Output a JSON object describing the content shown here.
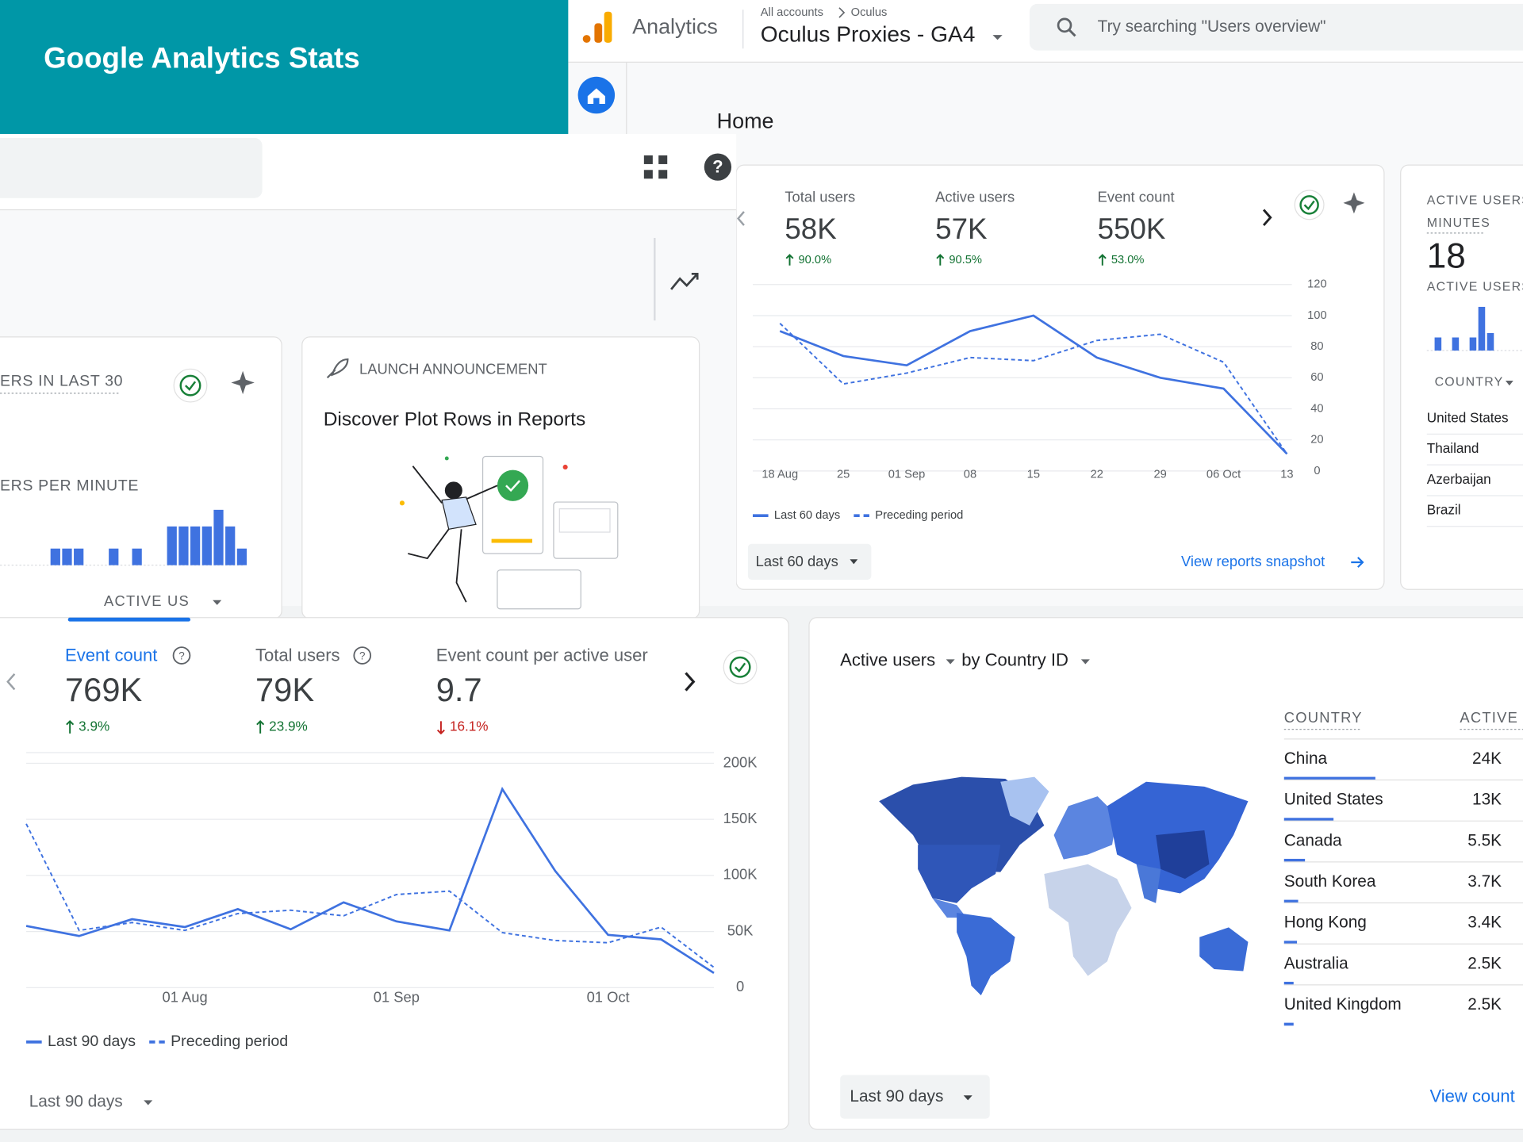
{
  "banner": {
    "title": "Google Analytics Stats"
  },
  "topbar": {
    "product": "Analytics",
    "breadcrumb": [
      "All accounts",
      "Oculus"
    ],
    "property": "Oculus Proxies - GA4",
    "search_placeholder": "Try searching \"Users overview\""
  },
  "page_title": "Home",
  "realtime_card": {
    "labels": [
      "ERS IN LAST 30",
      "ERS PER MINUTE",
      "ACTIVE US"
    ]
  },
  "launch_card": {
    "eyebrow": "LAUNCH ANNOUNCEMENT",
    "title": "Discover Plot Rows in Reports"
  },
  "right_card": {
    "title_lines": [
      "ACTIVE USERS I",
      "MINUTES"
    ],
    "value": "18",
    "subtitle": "ACTIVE USERS I",
    "column": "COUNTRY",
    "countries": [
      "United States",
      "Thailand",
      "Azerbaijan",
      "Brazil"
    ]
  },
  "top_card": {
    "date_range": "Last 60 days",
    "link": "View reports snapshot"
  },
  "bottom_card": {
    "date_range": "Last 90 days"
  },
  "map_card": {
    "title_metric": "Active users",
    "title_dimension": "by Country ID",
    "date_range": "Last 90 days",
    "link": "View count"
  },
  "chart_data": [
    {
      "type": "line",
      "metrics": [
        {
          "name": "Total users",
          "value": "58K",
          "change": "90.0%",
          "trend": "up"
        },
        {
          "name": "Active users",
          "value": "57K",
          "change": "90.5%",
          "trend": "up"
        },
        {
          "name": "Event count",
          "value": "550K",
          "change": "53.0%",
          "trend": "up"
        }
      ],
      "categories": [
        "18 Aug",
        "25",
        "01 Sep",
        "08",
        "15",
        "22",
        "29",
        "06 Oct",
        "13"
      ],
      "series": [
        {
          "name": "Last 60 days",
          "color": "#3f72e0",
          "style": "solid",
          "values": [
            90,
            74,
            68,
            90,
            100,
            73,
            60,
            53,
            11
          ]
        },
        {
          "name": "Preceding period",
          "color": "#3f72e0",
          "style": "dashed",
          "values": [
            95,
            56,
            63,
            73,
            71,
            84,
            88,
            70,
            11
          ]
        }
      ],
      "ylim": [
        0,
        120
      ],
      "yticks": [
        0,
        20,
        40,
        60,
        80,
        100,
        120
      ],
      "grid": true
    },
    {
      "type": "line",
      "selected_metric": 0,
      "metrics": [
        {
          "name": "Event count",
          "value": "769K",
          "change": "3.9%",
          "trend": "up"
        },
        {
          "name": "Total users",
          "value": "79K",
          "change": "23.9%",
          "trend": "up"
        },
        {
          "name": "Event count per active user",
          "value": "9.7",
          "change": "16.1%",
          "trend": "down"
        }
      ],
      "categories": [
        null,
        null,
        null,
        "01 Aug",
        null,
        null,
        null,
        "01 Sep",
        null,
        null,
        null,
        "01 Oct",
        null,
        null
      ],
      "series": [
        {
          "name": "Last 90 days",
          "color": "#3f72e0",
          "style": "solid",
          "values": [
            55000,
            46000,
            61000,
            54000,
            70000,
            52000,
            76000,
            59000,
            51000,
            177000,
            104000,
            47000,
            43000,
            13000
          ]
        },
        {
          "name": "Preceding period",
          "color": "#3f72e0",
          "style": "dashed",
          "values": [
            146000,
            51000,
            58000,
            51000,
            66000,
            69000,
            64000,
            83000,
            86000,
            49000,
            42000,
            40000,
            54000,
            18000
          ]
        }
      ],
      "ylim": [
        0,
        200000
      ],
      "yticks": [
        0,
        {
          "value": 50000,
          "label": "50K"
        },
        {
          "value": 100000,
          "label": "100K"
        },
        {
          "value": 150000,
          "label": "150K"
        },
        {
          "value": 200000,
          "label": "200K"
        }
      ],
      "grid": true
    },
    {
      "type": "hbar",
      "columns": [
        "COUNTRY",
        "ACTIVE"
      ],
      "categories": [
        "China",
        "United States",
        "Canada",
        "South Korea",
        "Hong Kong",
        "Australia",
        "United Kingdom"
      ],
      "values": [
        24000,
        13000,
        5500,
        3700,
        3400,
        2500,
        2500
      ],
      "value_labels": [
        "24K",
        "13K",
        "5.5K",
        "3.7K",
        "3.4K",
        "2.5K",
        "2.5K"
      ],
      "color": "#3f72e0"
    },
    {
      "type": "bar",
      "values": [
        3,
        3,
        3,
        0,
        0,
        3,
        0,
        3,
        0,
        0,
        7,
        7,
        7,
        7,
        10,
        7,
        3
      ],
      "color": "#3f72e0"
    },
    {
      "type": "bar",
      "values": [
        3,
        0,
        3,
        0,
        3,
        10,
        4
      ],
      "color": "#3f72e0"
    }
  ]
}
